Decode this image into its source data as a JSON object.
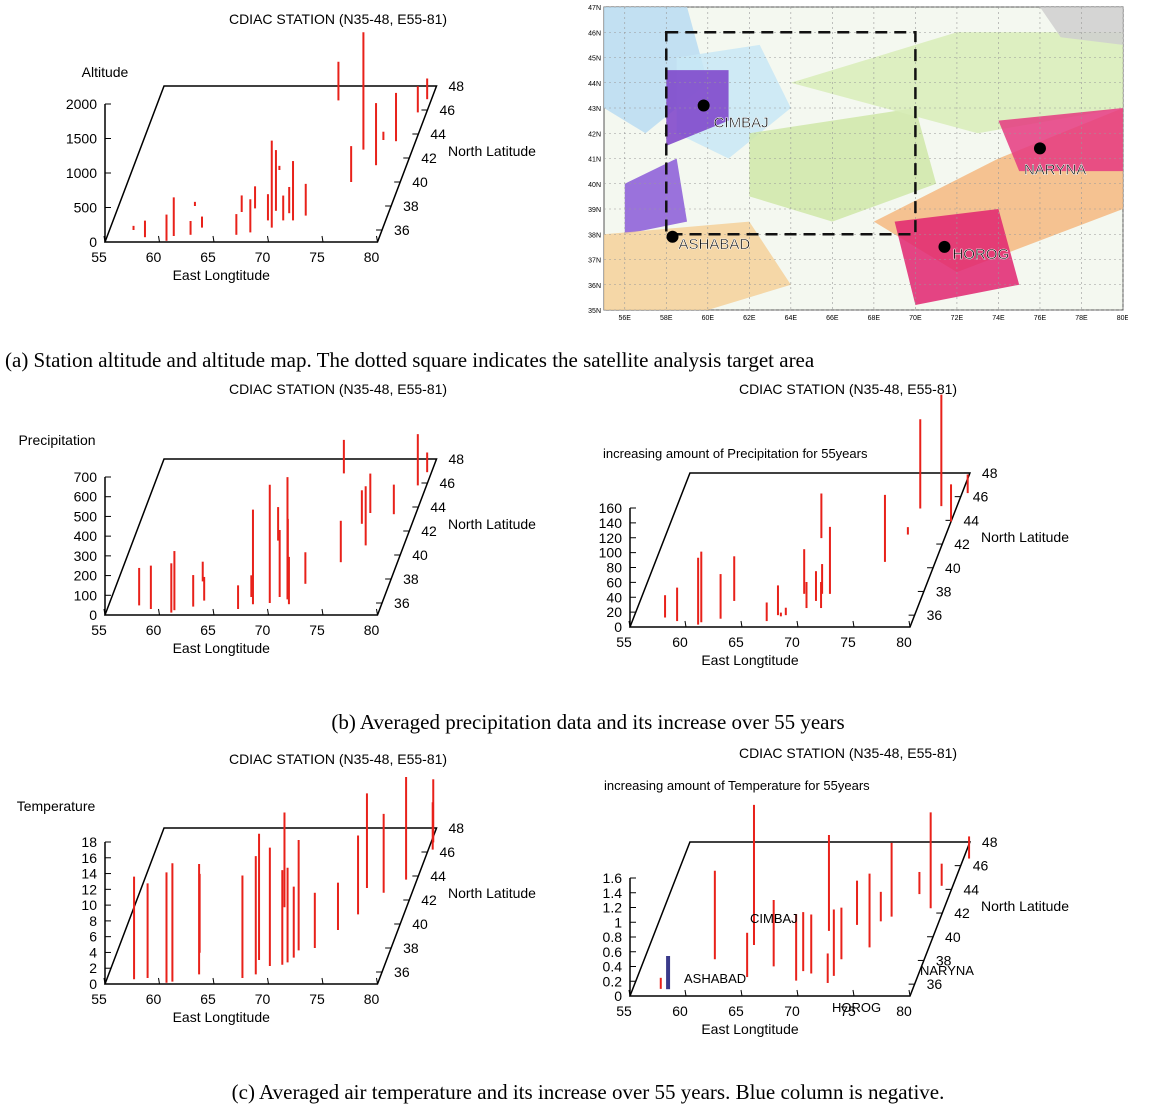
{
  "common": {
    "station_title": "CDIAC STATION (N35-48, E55-81)",
    "x_axis_label": "East Longtitude",
    "y_axis_label": "North Latitude",
    "x_ticks": [
      "55",
      "60",
      "65",
      "70",
      "75",
      "80"
    ],
    "y_ticks": [
      "36",
      "38",
      "40",
      "42",
      "44",
      "46",
      "48"
    ]
  },
  "captions": {
    "a": "(a) Station altitude and altitude map. The dotted square indicates the satellite analysis target area",
    "b": "(b) Averaged precipitation data and its increase over 55 years",
    "c": "(c) Averaged air temperature and its increase over 55 years. Blue column is negative."
  },
  "map": {
    "lat_labels": [
      "47N",
      "46N",
      "45N",
      "44N",
      "43N",
      "42N",
      "41N",
      "40N",
      "39N",
      "38N",
      "37N",
      "36N",
      "35N"
    ],
    "lon_labels": [
      "56E",
      "58E",
      "60E",
      "62E",
      "64E",
      "66E",
      "68E",
      "70E",
      "72E",
      "74E",
      "76E",
      "78E",
      "80E"
    ],
    "stations": [
      {
        "name": "CIMBAJ",
        "lon": 59.8,
        "lat": 43.1
      },
      {
        "name": "NARYNA",
        "lon": 76.0,
        "lat": 41.4
      },
      {
        "name": "ASHABAD",
        "lon": 58.3,
        "lat": 37.9
      },
      {
        "name": "HOROG",
        "lon": 71.4,
        "lat": 37.5
      }
    ],
    "target_area": {
      "lon_min": 58,
      "lon_max": 70,
      "lat_min": 38,
      "lat_max": 46
    }
  },
  "chart_data": [
    {
      "id": "altitude",
      "type": "bar3d",
      "title": "CDIAC STATION (N35-48, E55-81)",
      "subtitle": "",
      "zlabel": "Altitude",
      "xlabel": "East Longtitude",
      "ylabel": "North Latitude",
      "xlim": [
        55,
        80
      ],
      "ylim": [
        35,
        48
      ],
      "zlim": [
        0,
        2000
      ],
      "z_ticks": [
        "0",
        "500",
        "1000",
        "1500",
        "2000"
      ],
      "bar_color": "#e8211a",
      "bars": [
        {
          "x": 57.2,
          "y": 36.0,
          "z": 60
        },
        {
          "x": 58.5,
          "y": 35.4,
          "z": 240
        },
        {
          "x": 60.6,
          "y": 35.1,
          "z": 380
        },
        {
          "x": 61.1,
          "y": 35.5,
          "z": 560
        },
        {
          "x": 62.6,
          "y": 35.6,
          "z": 200
        },
        {
          "x": 63.4,
          "y": 36.2,
          "z": 160
        },
        {
          "x": 62.0,
          "y": 38.0,
          "z": 60
        },
        {
          "x": 66.8,
          "y": 35.6,
          "z": 300
        },
        {
          "x": 68.0,
          "y": 35.8,
          "z": 480
        },
        {
          "x": 66.5,
          "y": 37.5,
          "z": 240
        },
        {
          "x": 67.6,
          "y": 37.8,
          "z": 320
        },
        {
          "x": 69.2,
          "y": 36.8,
          "z": 380
        },
        {
          "x": 69.8,
          "y": 36.2,
          "z": 1260
        },
        {
          "x": 69.6,
          "y": 37.6,
          "z": 880
        },
        {
          "x": 70.6,
          "y": 36.8,
          "z": 360
        },
        {
          "x": 70.9,
          "y": 37.4,
          "z": 380
        },
        {
          "x": 71.5,
          "y": 36.8,
          "z": 860
        },
        {
          "x": 72.5,
          "y": 37.2,
          "z": 460
        },
        {
          "x": 68.5,
          "y": 41.0,
          "z": 60
        },
        {
          "x": 75.5,
          "y": 40.0,
          "z": 520
        },
        {
          "x": 75.5,
          "y": 42.7,
          "z": 1700
        },
        {
          "x": 71.5,
          "y": 46.8,
          "z": 560
        },
        {
          "x": 77.2,
          "y": 41.4,
          "z": 900
        },
        {
          "x": 77.0,
          "y": 43.5,
          "z": 120
        },
        {
          "x": 78.2,
          "y": 43.4,
          "z": 700
        },
        {
          "x": 79.2,
          "y": 45.8,
          "z": 380
        },
        {
          "x": 79.6,
          "y": 46.9,
          "z": 300
        }
      ]
    },
    {
      "id": "precipitation",
      "type": "bar3d",
      "title": "CDIAC STATION (N35-48, E55-81)",
      "subtitle": "",
      "zlabel": "Precipitation",
      "xlabel": "East Longtitude",
      "ylabel": "North Latitude",
      "xlim": [
        55,
        80
      ],
      "ylim": [
        35,
        48
      ],
      "zlim": [
        0,
        700
      ],
      "z_ticks": [
        "0",
        "100",
        "200",
        "300",
        "400",
        "500",
        "600",
        "700"
      ],
      "bar_color": "#e8211a",
      "bars": [
        {
          "x": 57.8,
          "y": 35.8,
          "z": 190
        },
        {
          "x": 59.0,
          "y": 35.5,
          "z": 220
        },
        {
          "x": 61.0,
          "y": 35.2,
          "z": 250
        },
        {
          "x": 61.2,
          "y": 35.4,
          "z": 300
        },
        {
          "x": 62.8,
          "y": 35.7,
          "z": 160
        },
        {
          "x": 63.6,
          "y": 36.2,
          "z": 120
        },
        {
          "x": 62.8,
          "y": 37.8,
          "z": 100
        },
        {
          "x": 67.0,
          "y": 35.5,
          "z": 120
        },
        {
          "x": 67.8,
          "y": 36.5,
          "z": 110
        },
        {
          "x": 68.2,
          "y": 35.9,
          "z": 480
        },
        {
          "x": 69.7,
          "y": 36.0,
          "z": 600
        },
        {
          "x": 70.4,
          "y": 36.5,
          "z": 340
        },
        {
          "x": 70.9,
          "y": 37.1,
          "z": 360
        },
        {
          "x": 71.2,
          "y": 36.3,
          "z": 620
        },
        {
          "x": 71.5,
          "y": 35.9,
          "z": 240
        },
        {
          "x": 72.3,
          "y": 37.6,
          "z": 160
        },
        {
          "x": 68.3,
          "y": 41.2,
          "z": 170
        },
        {
          "x": 74.8,
          "y": 39.4,
          "z": 210
        },
        {
          "x": 75.4,
          "y": 42.6,
          "z": 170
        },
        {
          "x": 72.0,
          "y": 46.8,
          "z": 170
        },
        {
          "x": 76.5,
          "y": 40.8,
          "z": 300
        },
        {
          "x": 75.8,
          "y": 43.5,
          "z": 200
        },
        {
          "x": 78.0,
          "y": 43.4,
          "z": 150
        },
        {
          "x": 79.2,
          "y": 45.8,
          "z": 260
        },
        {
          "x": 79.6,
          "y": 46.9,
          "z": 100
        }
      ]
    },
    {
      "id": "precipitation-increase",
      "type": "bar3d",
      "title": "CDIAC STATION (N35-48, E55-81)",
      "subtitle": "increasing amount of Precipitation for 55years",
      "zlabel": "",
      "xlabel": "East Longtitude",
      "ylabel": "North Latitude",
      "xlim": [
        55,
        80
      ],
      "ylim": [
        35,
        48
      ],
      "zlim": [
        0,
        160
      ],
      "z_ticks": [
        "0",
        "20",
        "40",
        "60",
        "80",
        "100",
        "120",
        "140",
        "160"
      ],
      "bar_color": "#e8211a",
      "bars": [
        {
          "x": 57.8,
          "y": 35.8,
          "z": 30
        },
        {
          "x": 59.0,
          "y": 35.5,
          "z": 45
        },
        {
          "x": 61.0,
          "y": 35.2,
          "z": 90
        },
        {
          "x": 61.2,
          "y": 35.4,
          "z": 95
        },
        {
          "x": 62.8,
          "y": 35.7,
          "z": 60
        },
        {
          "x": 63.4,
          "y": 37.2,
          "z": 60
        },
        {
          "x": 67.0,
          "y": 35.5,
          "z": 25
        },
        {
          "x": 67.8,
          "y": 36.0,
          "z": 40
        },
        {
          "x": 68.1,
          "y": 35.9,
          "z": 5
        },
        {
          "x": 68.5,
          "y": 36.0,
          "z": 10
        },
        {
          "x": 69.4,
          "y": 37.8,
          "z": 60
        },
        {
          "x": 70.1,
          "y": 36.6,
          "z": 35
        },
        {
          "x": 70.7,
          "y": 37.2,
          "z": 40
        },
        {
          "x": 71.0,
          "y": 37.8,
          "z": 40
        },
        {
          "x": 71.4,
          "y": 36.6,
          "z": 35
        },
        {
          "x": 71.7,
          "y": 37.8,
          "z": 90
        },
        {
          "x": 69.0,
          "y": 42.5,
          "z": 60
        },
        {
          "x": 75.5,
          "y": 40.5,
          "z": 90
        },
        {
          "x": 76.6,
          "y": 42.8,
          "z": 10
        },
        {
          "x": 78.6,
          "y": 45.2,
          "z": 150
        },
        {
          "x": 76.8,
          "y": 45.0,
          "z": 120
        },
        {
          "x": 80.0,
          "y": 43.9,
          "z": 50
        },
        {
          "x": 80.5,
          "y": 46.3,
          "z": 25
        }
      ]
    },
    {
      "id": "temperature",
      "type": "bar3d",
      "title": "CDIAC STATION (N35-48, E55-81)",
      "subtitle": "",
      "zlabel": "Temperature",
      "xlabel": "East Longtitude",
      "ylabel": "North Latitude",
      "xlim": [
        55,
        80
      ],
      "ylim": [
        35,
        48
      ],
      "zlim": [
        0,
        18
      ],
      "z_ticks": [
        "0",
        "2",
        "4",
        "6",
        "8",
        "10",
        "12",
        "14",
        "16",
        "18"
      ],
      "bar_color": "#e8211a",
      "bars": [
        {
          "x": 57.5,
          "y": 35.4,
          "z": 13
        },
        {
          "x": 58.7,
          "y": 35.5,
          "z": 12
        },
        {
          "x": 60.6,
          "y": 35.1,
          "z": 14
        },
        {
          "x": 61.1,
          "y": 35.2,
          "z": 15
        },
        {
          "x": 63.3,
          "y": 35.8,
          "z": 14
        },
        {
          "x": 62.6,
          "y": 37.6,
          "z": 10
        },
        {
          "x": 67.4,
          "y": 35.5,
          "z": 13
        },
        {
          "x": 68.5,
          "y": 35.8,
          "z": 15
        },
        {
          "x": 68.3,
          "y": 37.0,
          "z": 16
        },
        {
          "x": 69.5,
          "y": 36.5,
          "z": 15
        },
        {
          "x": 70.6,
          "y": 36.6,
          "z": 12
        },
        {
          "x": 71.0,
          "y": 36.8,
          "z": 12
        },
        {
          "x": 71.4,
          "y": 37.2,
          "z": 9
        },
        {
          "x": 71.6,
          "y": 37.8,
          "z": 14
        },
        {
          "x": 73.0,
          "y": 38.0,
          "z": 7
        },
        {
          "x": 68.8,
          "y": 41.4,
          "z": 12
        },
        {
          "x": 74.5,
          "y": 39.5,
          "z": 6
        },
        {
          "x": 75.8,
          "y": 40.8,
          "z": 10
        },
        {
          "x": 75.7,
          "y": 43.0,
          "z": 12
        },
        {
          "x": 77.4,
          "y": 42.6,
          "z": 10
        },
        {
          "x": 79.0,
          "y": 43.7,
          "z": 13
        },
        {
          "x": 80.2,
          "y": 46.8,
          "z": 8
        },
        {
          "x": 80.4,
          "y": 46.2,
          "z": 6
        }
      ]
    },
    {
      "id": "temperature-increase",
      "type": "bar3d",
      "title": "CDIAC STATION (N35-48, E55-81)",
      "subtitle": "increasing amount of Temperature for 55years",
      "zlabel": "",
      "xlabel": "East Longtitude",
      "ylabel": "North Latitude",
      "xlim": [
        55,
        80
      ],
      "ylim": [
        35,
        48
      ],
      "zlim": [
        0,
        1.6
      ],
      "z_ticks": [
        "0",
        "0.2",
        "0.4",
        "0.6",
        "0.8",
        "1",
        "1.2",
        "1.4",
        "1.6"
      ],
      "bar_color": "#e8211a",
      "negative_color": "#3a3a8a",
      "bars": [
        {
          "x": 57.5,
          "y": 35.6,
          "z": 0.15
        },
        {
          "x": 58.4,
          "y": 35.0,
          "z": -0.45,
          "negative": true
        },
        {
          "x": 61.3,
          "y": 38.1,
          "z": 1.2
        },
        {
          "x": 64.8,
          "y": 36.6,
          "z": 0.6
        },
        {
          "x": 64.3,
          "y": 39.3,
          "z": 1.9
        },
        {
          "x": 66.8,
          "y": 37.5,
          "z": 0.9
        },
        {
          "x": 69.3,
          "y": 36.3,
          "z": 0.9
        },
        {
          "x": 69.6,
          "y": 37.1,
          "z": 0.8
        },
        {
          "x": 70.4,
          "y": 36.9,
          "z": 0.8
        },
        {
          "x": 70.5,
          "y": 40.5,
          "z": 1.3
        },
        {
          "x": 72.2,
          "y": 36.1,
          "z": 0.4
        },
        {
          "x": 72.5,
          "y": 36.7,
          "z": 0.9
        },
        {
          "x": 72.6,
          "y": 38.1,
          "z": 0.7
        },
        {
          "x": 72.8,
          "y": 41.0,
          "z": 0.6
        },
        {
          "x": 74.7,
          "y": 39.1,
          "z": 1.0
        },
        {
          "x": 75.6,
          "y": 41.7,
          "z": 1.0
        },
        {
          "x": 74.8,
          "y": 41.3,
          "z": 0.4
        },
        {
          "x": 77.3,
          "y": 43.6,
          "z": 0.3
        },
        {
          "x": 78.8,
          "y": 42.4,
          "z": 1.3
        },
        {
          "x": 79.0,
          "y": 44.3,
          "z": 0.3
        },
        {
          "x": 80.5,
          "y": 46.6,
          "z": 0.3
        }
      ],
      "annotations": [
        "ASHABAD",
        "CIMBAJ",
        "HOROG",
        "NARYNA"
      ]
    }
  ]
}
